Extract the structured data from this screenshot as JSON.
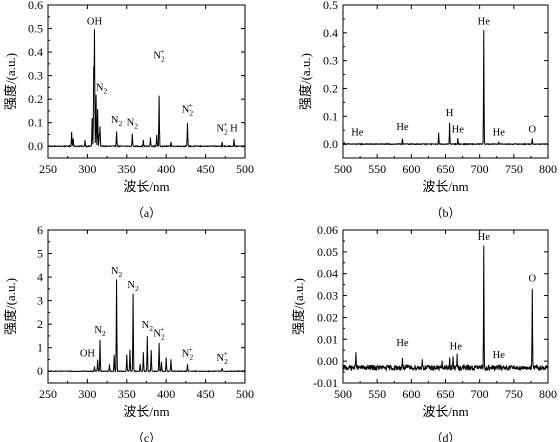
{
  "chart_data": [
    {
      "id": "a",
      "type": "line",
      "caption": "（a）",
      "xlabel": "波长/nm",
      "ylabel": "强度/(a.u.)",
      "xlim": [
        250,
        500
      ],
      "ylim": [
        -0.05,
        0.6
      ],
      "xticks": [
        250,
        300,
        350,
        400,
        450,
        500
      ],
      "yticks": [
        0.0,
        0.1,
        0.2,
        0.3,
        0.4,
        0.5,
        0.6
      ],
      "tick_decimals": 1,
      "grid": false,
      "baseline": 0.0,
      "noise": 0.002,
      "peaks": [
        {
          "x": 280,
          "y": 0.06
        },
        {
          "x": 282,
          "y": 0.035
        },
        {
          "x": 297,
          "y": 0.025
        },
        {
          "x": 306,
          "y": 0.12
        },
        {
          "x": 308,
          "y": 0.33
        },
        {
          "x": 309,
          "y": 0.49
        },
        {
          "x": 311,
          "y": 0.22
        },
        {
          "x": 313,
          "y": 0.16
        },
        {
          "x": 315,
          "y": 0.05
        },
        {
          "x": 316,
          "y": 0.085
        },
        {
          "x": 337,
          "y": 0.065
        },
        {
          "x": 357,
          "y": 0.055
        },
        {
          "x": 371,
          "y": 0.025
        },
        {
          "x": 380,
          "y": 0.035
        },
        {
          "x": 388,
          "y": 0.05
        },
        {
          "x": 391,
          "y": 0.215
        },
        {
          "x": 406,
          "y": 0.02
        },
        {
          "x": 427,
          "y": 0.1
        },
        {
          "x": 471,
          "y": 0.02
        },
        {
          "x": 486,
          "y": 0.03
        }
      ],
      "labels": [
        {
          "text": "OH",
          "x": 309,
          "y": 0.505
        },
        {
          "text": "N",
          "sub": "2",
          "x": 318,
          "y": 0.225
        },
        {
          "text": "N",
          "sub": "2",
          "x": 337,
          "y": 0.085
        },
        {
          "text": "N",
          "sub": "2",
          "x": 357,
          "y": 0.075
        },
        {
          "text": "N",
          "sub": "2",
          "sup": "+",
          "x": 391,
          "y": 0.36
        },
        {
          "text": "N",
          "sub": "2",
          "sup": "+",
          "x": 427,
          "y": 0.13
        },
        {
          "text": "N",
          "sub": "2",
          "sup": "+",
          "x": 471,
          "y": 0.05
        },
        {
          "text": "H",
          "x": 486,
          "y": 0.05
        }
      ]
    },
    {
      "id": "b",
      "type": "line",
      "caption": "（b）",
      "xlabel": "波长/nm",
      "ylabel": "强度/(a.u.)",
      "xlim": [
        500,
        800
      ],
      "ylim": [
        -0.05,
        0.5
      ],
      "xticks": [
        500,
        550,
        600,
        650,
        700,
        750,
        800
      ],
      "yticks": [
        0.0,
        0.1,
        0.2,
        0.3,
        0.4,
        0.5
      ],
      "tick_decimals": 1,
      "grid": false,
      "baseline": 0.0,
      "noise": 0.0015,
      "peaks": [
        {
          "x": 502,
          "y": 0.005
        },
        {
          "x": 587,
          "y": 0.02
        },
        {
          "x": 640,
          "y": 0.04
        },
        {
          "x": 656,
          "y": 0.075
        },
        {
          "x": 668,
          "y": 0.02
        },
        {
          "x": 706,
          "y": 0.41
        },
        {
          "x": 728,
          "y": 0.01
        },
        {
          "x": 777,
          "y": 0.02
        }
      ],
      "labels": [
        {
          "text": "He",
          "x": 521,
          "y": 0.02
        },
        {
          "text": "He",
          "x": 587,
          "y": 0.04
        },
        {
          "text": "H",
          "x": 656,
          "y": 0.09
        },
        {
          "text": "He",
          "x": 668,
          "y": 0.03
        },
        {
          "text": "He",
          "x": 706,
          "y": 0.42
        },
        {
          "text": "He",
          "x": 728,
          "y": 0.02
        },
        {
          "text": "O",
          "x": 777,
          "y": 0.03
        }
      ]
    },
    {
      "id": "c",
      "type": "line",
      "caption": "（c）",
      "xlabel": "波长/nm",
      "ylabel": "强度/(a.u.)",
      "xlim": [
        250,
        500
      ],
      "ylim": [
        -0.5,
        6
      ],
      "xticks": [
        250,
        300,
        350,
        400,
        450,
        500
      ],
      "yticks": [
        0,
        1,
        2,
        3,
        4,
        5,
        6
      ],
      "tick_decimals": 0,
      "grid": false,
      "baseline": 0.0,
      "noise": 0.015,
      "peaks": [
        {
          "x": 309,
          "y": 0.2
        },
        {
          "x": 313,
          "y": 0.5
        },
        {
          "x": 316,
          "y": 1.35
        },
        {
          "x": 328,
          "y": 0.3
        },
        {
          "x": 334,
          "y": 0.7
        },
        {
          "x": 337,
          "y": 3.9
        },
        {
          "x": 350,
          "y": 0.7
        },
        {
          "x": 354,
          "y": 0.9
        },
        {
          "x": 358,
          "y": 3.3
        },
        {
          "x": 367,
          "y": 0.3
        },
        {
          "x": 371,
          "y": 0.8
        },
        {
          "x": 376,
          "y": 1.5
        },
        {
          "x": 381,
          "y": 0.9
        },
        {
          "x": 391,
          "y": 1.2
        },
        {
          "x": 394,
          "y": 0.4
        },
        {
          "x": 400,
          "y": 0.6
        },
        {
          "x": 406,
          "y": 0.5
        },
        {
          "x": 427,
          "y": 0.3
        },
        {
          "x": 471,
          "y": 0.12
        }
      ],
      "labels": [
        {
          "text": "OH",
          "x": 300,
          "y": 0.5
        },
        {
          "text": "N",
          "sub": "2",
          "x": 316,
          "y": 1.5
        },
        {
          "text": "N",
          "sub": "2",
          "x": 337,
          "y": 4.0
        },
        {
          "text": "N",
          "sub": "2",
          "x": 358,
          "y": 3.4
        },
        {
          "text": "N",
          "sub": "2",
          "x": 376,
          "y": 1.7
        },
        {
          "text": "N",
          "sub": "2",
          "sup": "+",
          "x": 391,
          "y": 1.35
        },
        {
          "text": "N",
          "sub": "2",
          "sup": "+",
          "x": 427,
          "y": 0.5
        },
        {
          "text": "N",
          "sub": "2",
          "sup": "+",
          "x": 471,
          "y": 0.3
        }
      ]
    },
    {
      "id": "d",
      "type": "line",
      "caption": "（d）",
      "xlabel": "波长/nm",
      "ylabel": "强度/(a.u.)",
      "xlim": [
        500,
        800
      ],
      "ylim": [
        -0.01,
        0.06
      ],
      "xticks": [
        500,
        550,
        600,
        650,
        700,
        750,
        800
      ],
      "yticks": [
        -0.01,
        0.0,
        0.01,
        0.02,
        0.03,
        0.04,
        0.05,
        0.06
      ],
      "tick_decimals": 2,
      "grid": false,
      "baseline": -0.003,
      "noise": 0.0012,
      "peaks": [
        {
          "x": 519,
          "y": 0.005
        },
        {
          "x": 587,
          "y": 0.0015
        },
        {
          "x": 616,
          "y": 0.001
        },
        {
          "x": 645,
          "y": -0.001
        },
        {
          "x": 656,
          "y": 0.0015
        },
        {
          "x": 661,
          "y": 0.001
        },
        {
          "x": 667,
          "y": 0.0025
        },
        {
          "x": 706,
          "y": 0.053
        },
        {
          "x": 728,
          "y": -0.002
        },
        {
          "x": 745,
          "y": -0.0015
        },
        {
          "x": 777,
          "y": 0.033
        }
      ],
      "labels": [
        {
          "text": "He",
          "x": 587,
          "y": 0.0055
        },
        {
          "text": "He",
          "x": 665,
          "y": 0.004
        },
        {
          "text": "He",
          "x": 706,
          "y": 0.054
        },
        {
          "text": "He",
          "x": 728,
          "y": 0.0
        },
        {
          "text": "O",
          "x": 777,
          "y": 0.035
        }
      ]
    }
  ]
}
